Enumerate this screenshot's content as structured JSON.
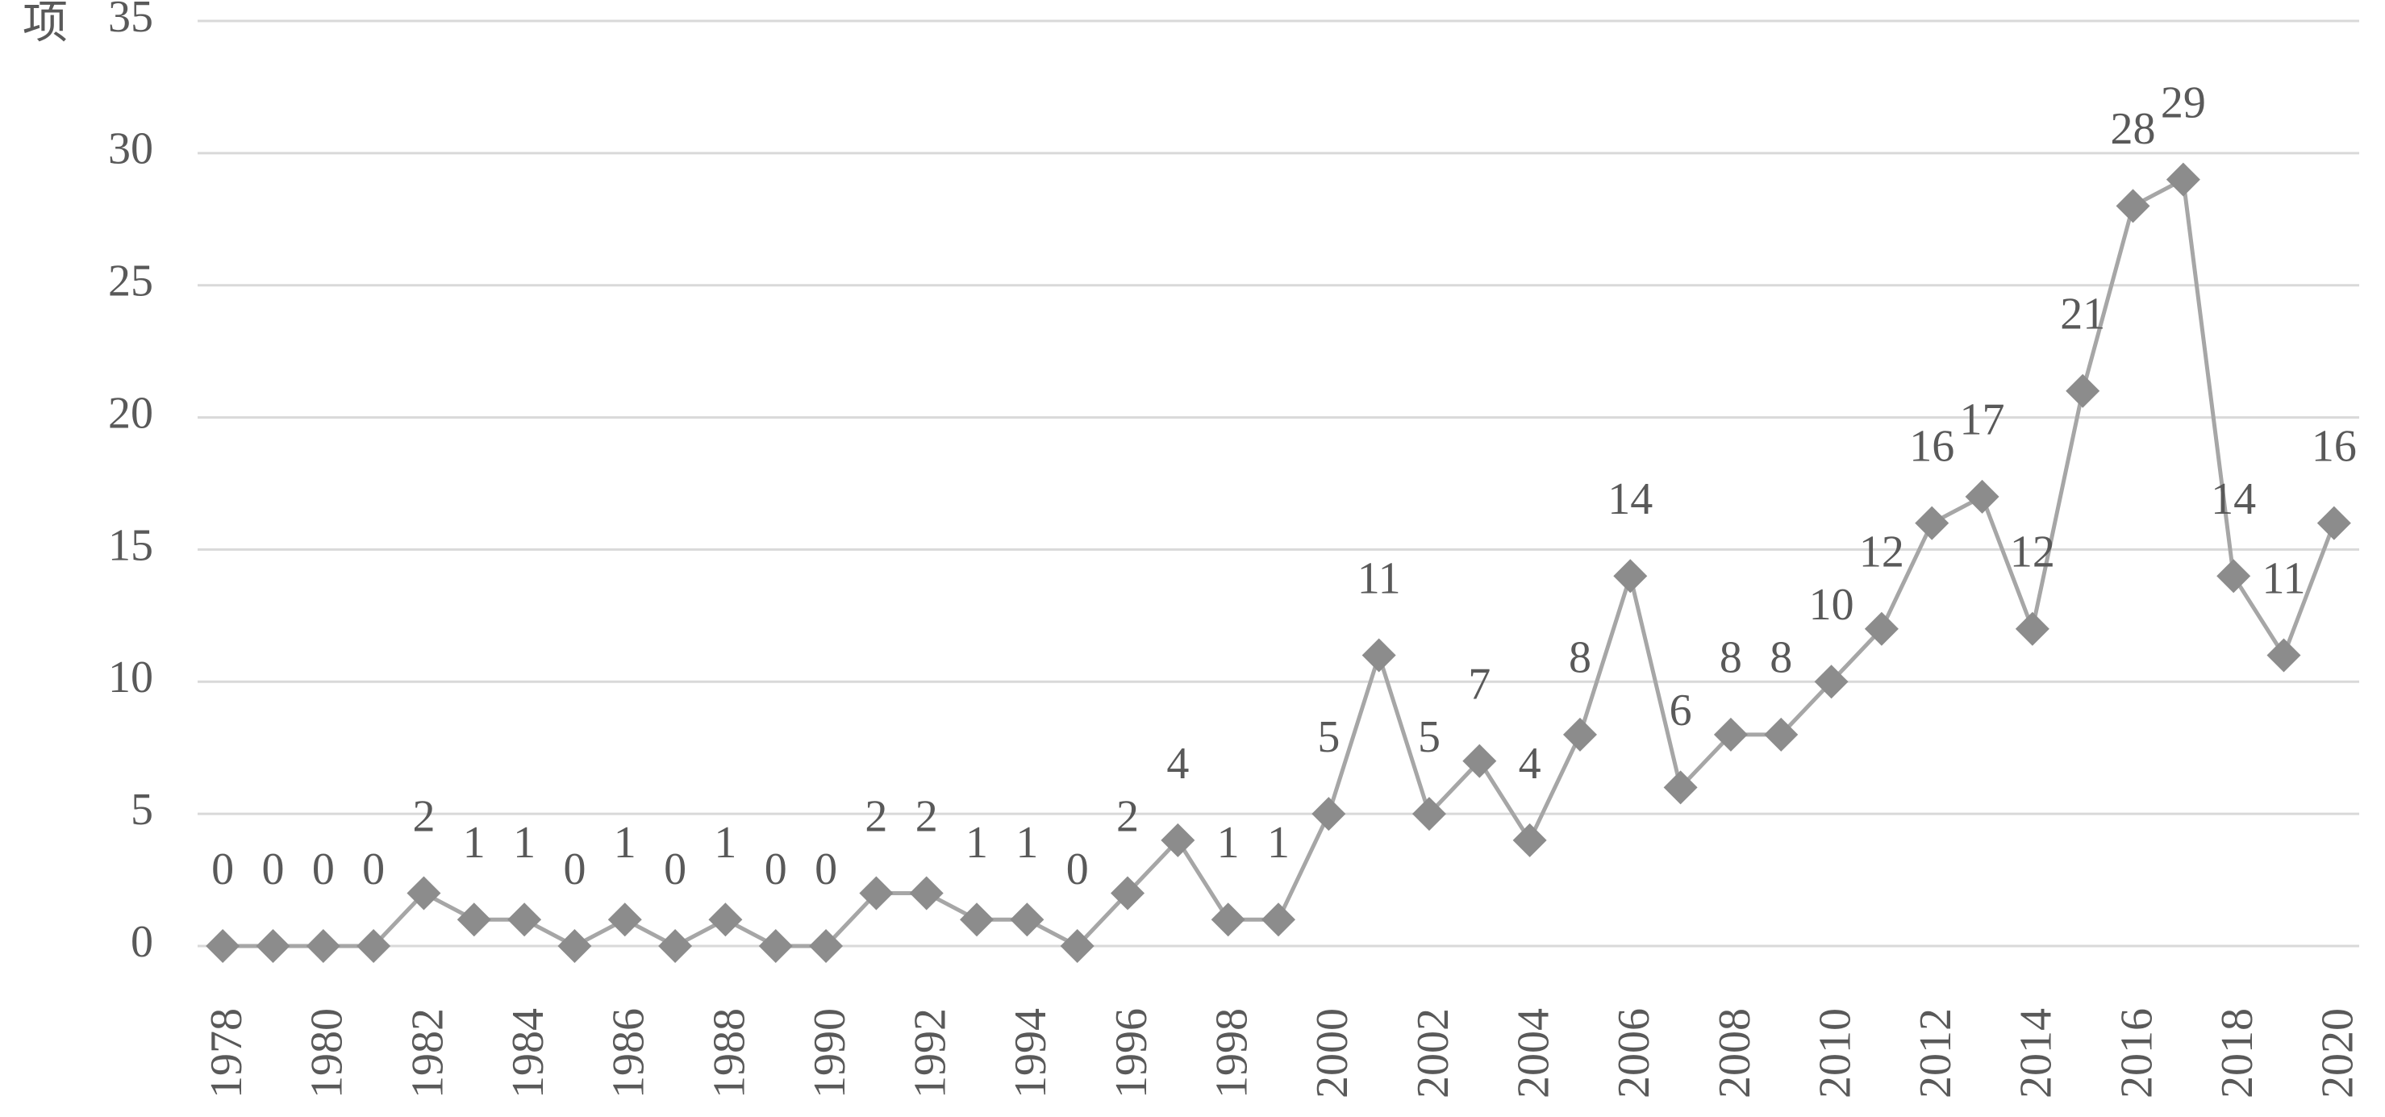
{
  "chart_data": {
    "type": "line",
    "y_label": "项",
    "categories": [
      "1978",
      null,
      "1980",
      null,
      "1982",
      null,
      "1984",
      null,
      "1986",
      null,
      "1988",
      null,
      "1990",
      null,
      "1992",
      null,
      "1994",
      null,
      "1996",
      null,
      "1998",
      null,
      "2000",
      null,
      "2002",
      null,
      "2004",
      null,
      "2006",
      null,
      "2008",
      null,
      "2010",
      null,
      "2012",
      null,
      "2014",
      null,
      "2016",
      null,
      "2018",
      null,
      "2020"
    ],
    "values": [
      0,
      0,
      0,
      0,
      2,
      1,
      1,
      0,
      1,
      0,
      1,
      0,
      0,
      2,
      2,
      1,
      1,
      0,
      2,
      4,
      1,
      1,
      5,
      11,
      5,
      7,
      4,
      8,
      14,
      6,
      8,
      8,
      10,
      12,
      16,
      17,
      12,
      21,
      28,
      29,
      14,
      11,
      16
    ],
    "line_color": "#a6a6a6",
    "marker_color": "#8c8c8c",
    "ylim": [
      0,
      35
    ],
    "yticks": [
      0,
      5,
      10,
      15,
      20,
      25,
      30,
      35
    ],
    "grid": true
  }
}
